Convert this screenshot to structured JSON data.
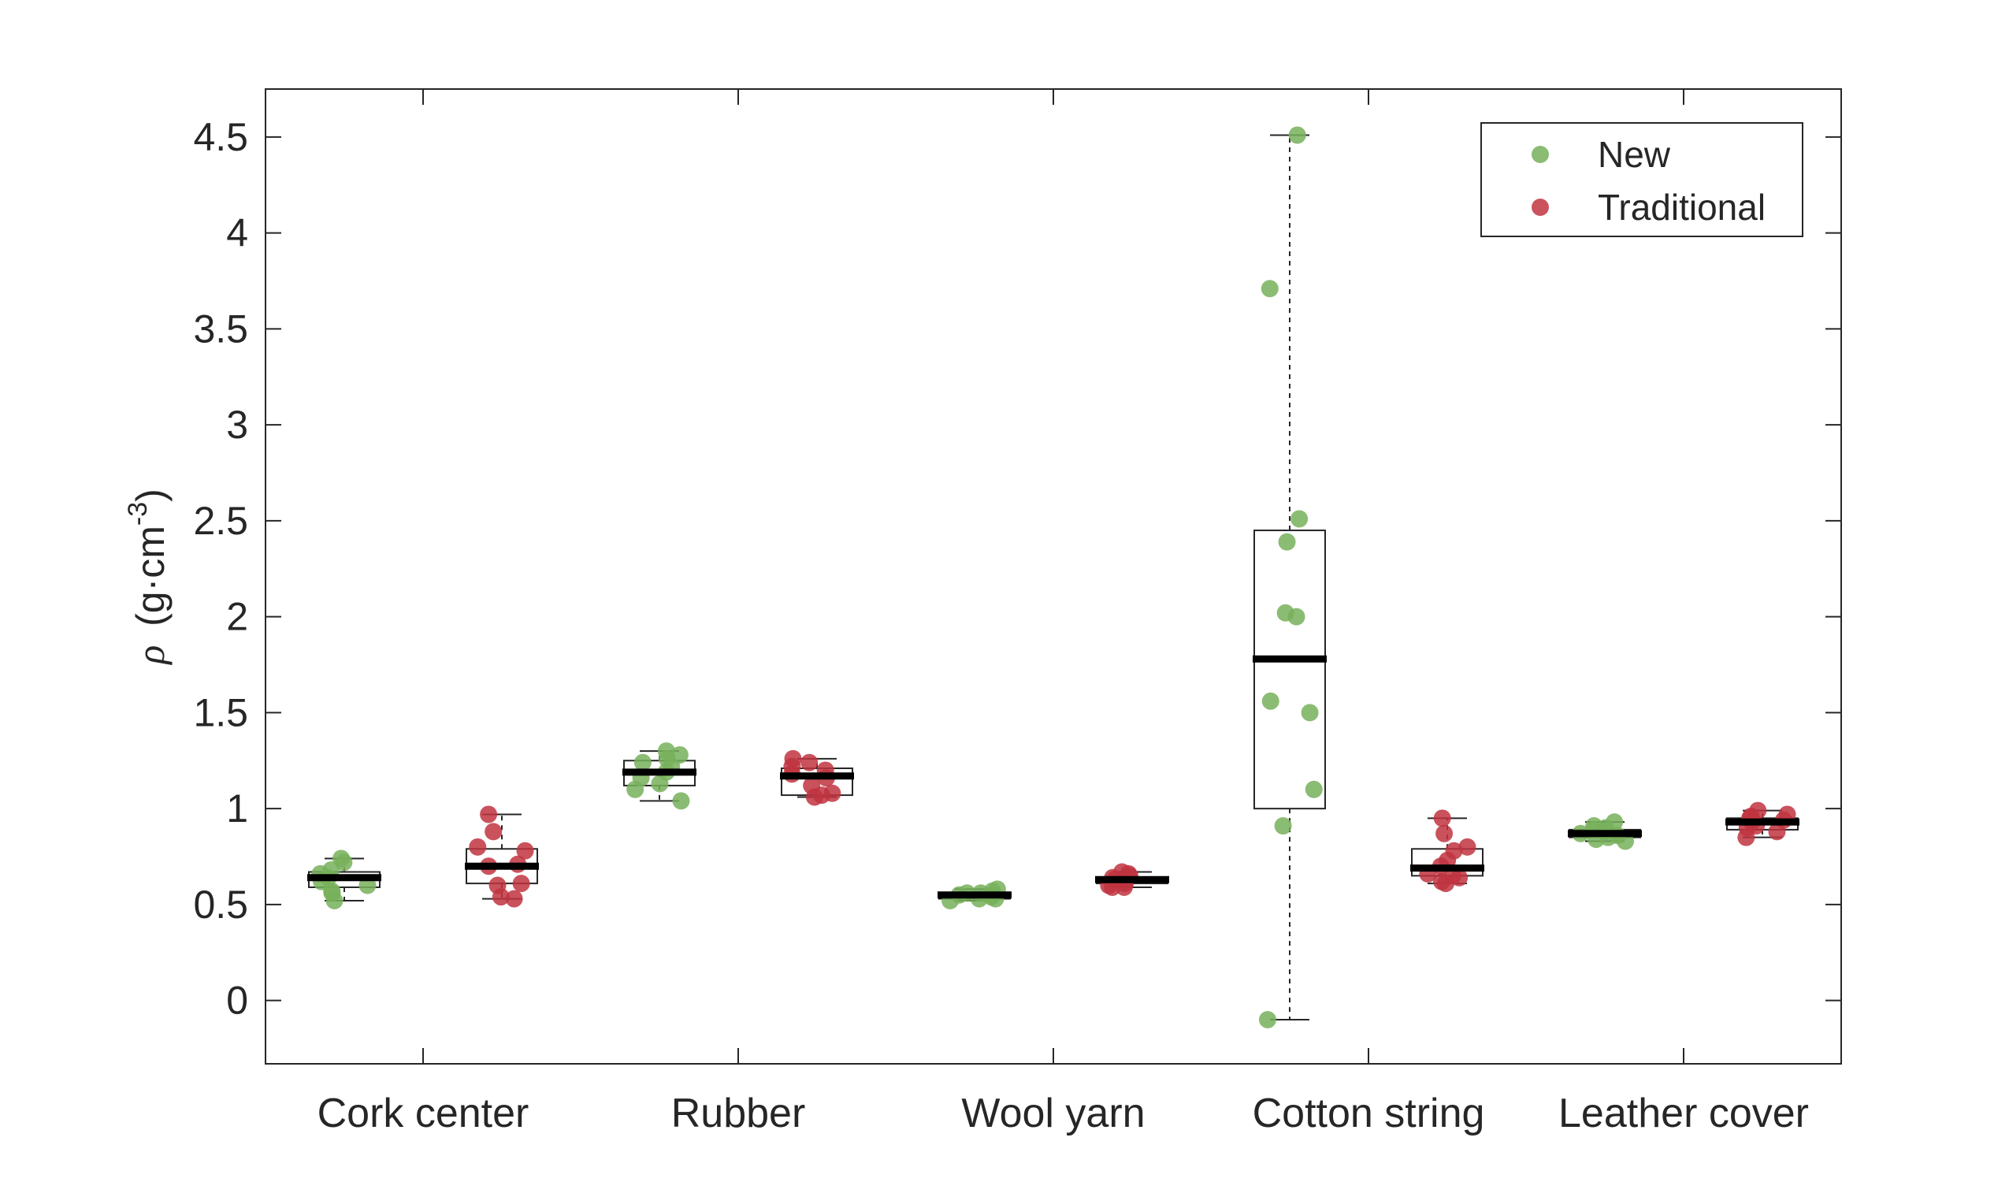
{
  "chart_data": {
    "type": "box",
    "ylabel": {
      "symbol": "ρ",
      "unit_open": "(g·cm",
      "exponent": "-3",
      "unit_close": ")"
    },
    "ylim": [
      -0.33,
      4.75
    ],
    "yticks": [
      "0",
      "0.5",
      "1",
      "1.5",
      "2",
      "2.5",
      "3",
      "3.5",
      "4",
      "4.5"
    ],
    "yticks_values": [
      0,
      0.5,
      1,
      1.5,
      2,
      2.5,
      3,
      3.5,
      4,
      4.5
    ],
    "categories": [
      "Cork center",
      "Rubber",
      "Wool yarn",
      "Cotton string",
      "Leather cover"
    ],
    "grid": false,
    "legend_position": "top-right",
    "colors": {
      "New": "#77b05a",
      "Traditional": "#c0343f"
    },
    "series": [
      {
        "name": "New",
        "boxes": [
          {
            "min": 0.52,
            "q1": 0.59,
            "median": 0.64,
            "q3": 0.67,
            "max": 0.74
          },
          {
            "min": 1.04,
            "q1": 1.12,
            "median": 1.19,
            "q3": 1.25,
            "max": 1.3
          },
          {
            "min": 0.52,
            "q1": 0.53,
            "median": 0.55,
            "q3": 0.56,
            "max": 0.58
          },
          {
            "min": -0.1,
            "q1": 1.0,
            "median": 1.78,
            "q3": 2.45,
            "max": 4.51
          },
          {
            "min": 0.83,
            "q1": 0.85,
            "median": 0.87,
            "q3": 0.89,
            "max": 0.93
          }
        ],
        "points": [
          [
            0.74,
            0.72,
            0.68,
            0.66,
            0.64,
            0.62,
            0.6,
            0.57,
            0.56,
            0.52
          ],
          [
            1.3,
            1.28,
            1.26,
            1.24,
            1.22,
            1.19,
            1.16,
            1.13,
            1.1,
            1.04
          ],
          [
            0.58,
            0.57,
            0.56,
            0.56,
            0.55,
            0.55,
            0.54,
            0.53,
            0.53,
            0.52
          ],
          [
            4.51,
            3.71,
            2.51,
            2.39,
            2.02,
            2.0,
            1.56,
            1.5,
            1.1,
            0.91,
            -0.1
          ],
          [
            0.93,
            0.91,
            0.9,
            0.89,
            0.88,
            0.87,
            0.86,
            0.85,
            0.84,
            0.83
          ]
        ]
      },
      {
        "name": "Traditional",
        "boxes": [
          {
            "min": 0.53,
            "q1": 0.61,
            "median": 0.7,
            "q3": 0.79,
            "max": 0.97
          },
          {
            "min": 1.06,
            "q1": 1.07,
            "median": 1.17,
            "q3": 1.21,
            "max": 1.26
          },
          {
            "min": 0.59,
            "q1": 0.61,
            "median": 0.63,
            "q3": 0.64,
            "max": 0.67
          },
          {
            "min": 0.61,
            "q1": 0.65,
            "median": 0.69,
            "q3": 0.79,
            "max": 0.95
          },
          {
            "min": 0.85,
            "q1": 0.89,
            "median": 0.93,
            "q3": 0.95,
            "max": 0.99
          }
        ],
        "points": [
          [
            0.97,
            0.88,
            0.8,
            0.78,
            0.71,
            0.7,
            0.61,
            0.6,
            0.54,
            0.53
          ],
          [
            1.26,
            1.24,
            1.22,
            1.2,
            1.18,
            1.16,
            1.12,
            1.08,
            1.07,
            1.06
          ],
          [
            0.67,
            0.66,
            0.65,
            0.64,
            0.63,
            0.62,
            0.61,
            0.6,
            0.59,
            0.59
          ],
          [
            0.95,
            0.87,
            0.8,
            0.78,
            0.73,
            0.7,
            0.66,
            0.65,
            0.64,
            0.62,
            0.61
          ],
          [
            0.99,
            0.97,
            0.96,
            0.95,
            0.94,
            0.93,
            0.91,
            0.9,
            0.88,
            0.85
          ]
        ]
      }
    ]
  }
}
